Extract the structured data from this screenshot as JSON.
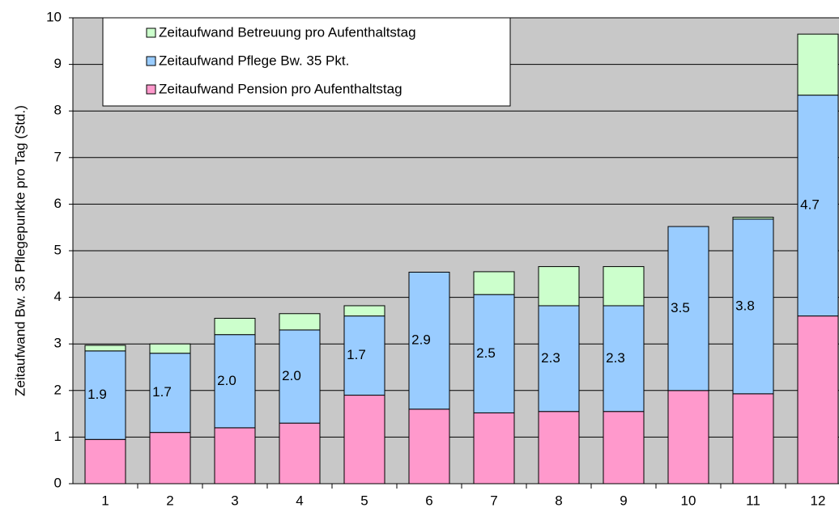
{
  "chart_data": {
    "type": "stacked_bar",
    "y_label": "Zeitaufwand Bw. 35 Pflegepunkte pro Tag (Std.)",
    "categories": [
      "1",
      "2",
      "3",
      "4",
      "5",
      "6",
      "7",
      "8",
      "9",
      "10",
      "11",
      "12"
    ],
    "series": [
      {
        "name": "Zeitaufwand Pension pro Aufenthaltstag",
        "color": "#ff99cc",
        "values": [
          0.95,
          1.1,
          1.2,
          1.3,
          1.9,
          1.6,
          1.52,
          1.55,
          1.55,
          2.0,
          1.93,
          3.6
        ]
      },
      {
        "name": "Zeitaufwand Pflege Bw. 35 Pkt.",
        "color": "#99ccff",
        "values": [
          1.9,
          1.7,
          2.0,
          2.0,
          1.7,
          2.94,
          2.54,
          2.27,
          2.27,
          3.52,
          3.75,
          4.74
        ],
        "value_labels": [
          "1.9",
          "1.7",
          "2.0",
          "2.0",
          "1.7",
          "2.9",
          "2.5",
          "2.3",
          "2.3",
          "3.5",
          "3.8",
          "4.7"
        ]
      },
      {
        "name": "Zeitaufwand Betreuung pro Aufenthaltstag",
        "color": "#ccffcc",
        "values": [
          0.12,
          0.2,
          0.35,
          0.35,
          0.22,
          0,
          0.49,
          0.84,
          0.84,
          0,
          0.04,
          1.31
        ]
      }
    ],
    "ylim": [
      0,
      10
    ],
    "yticks": [
      0,
      1,
      2,
      3,
      4,
      5,
      6,
      7,
      8,
      9,
      10
    ],
    "grid": true
  }
}
